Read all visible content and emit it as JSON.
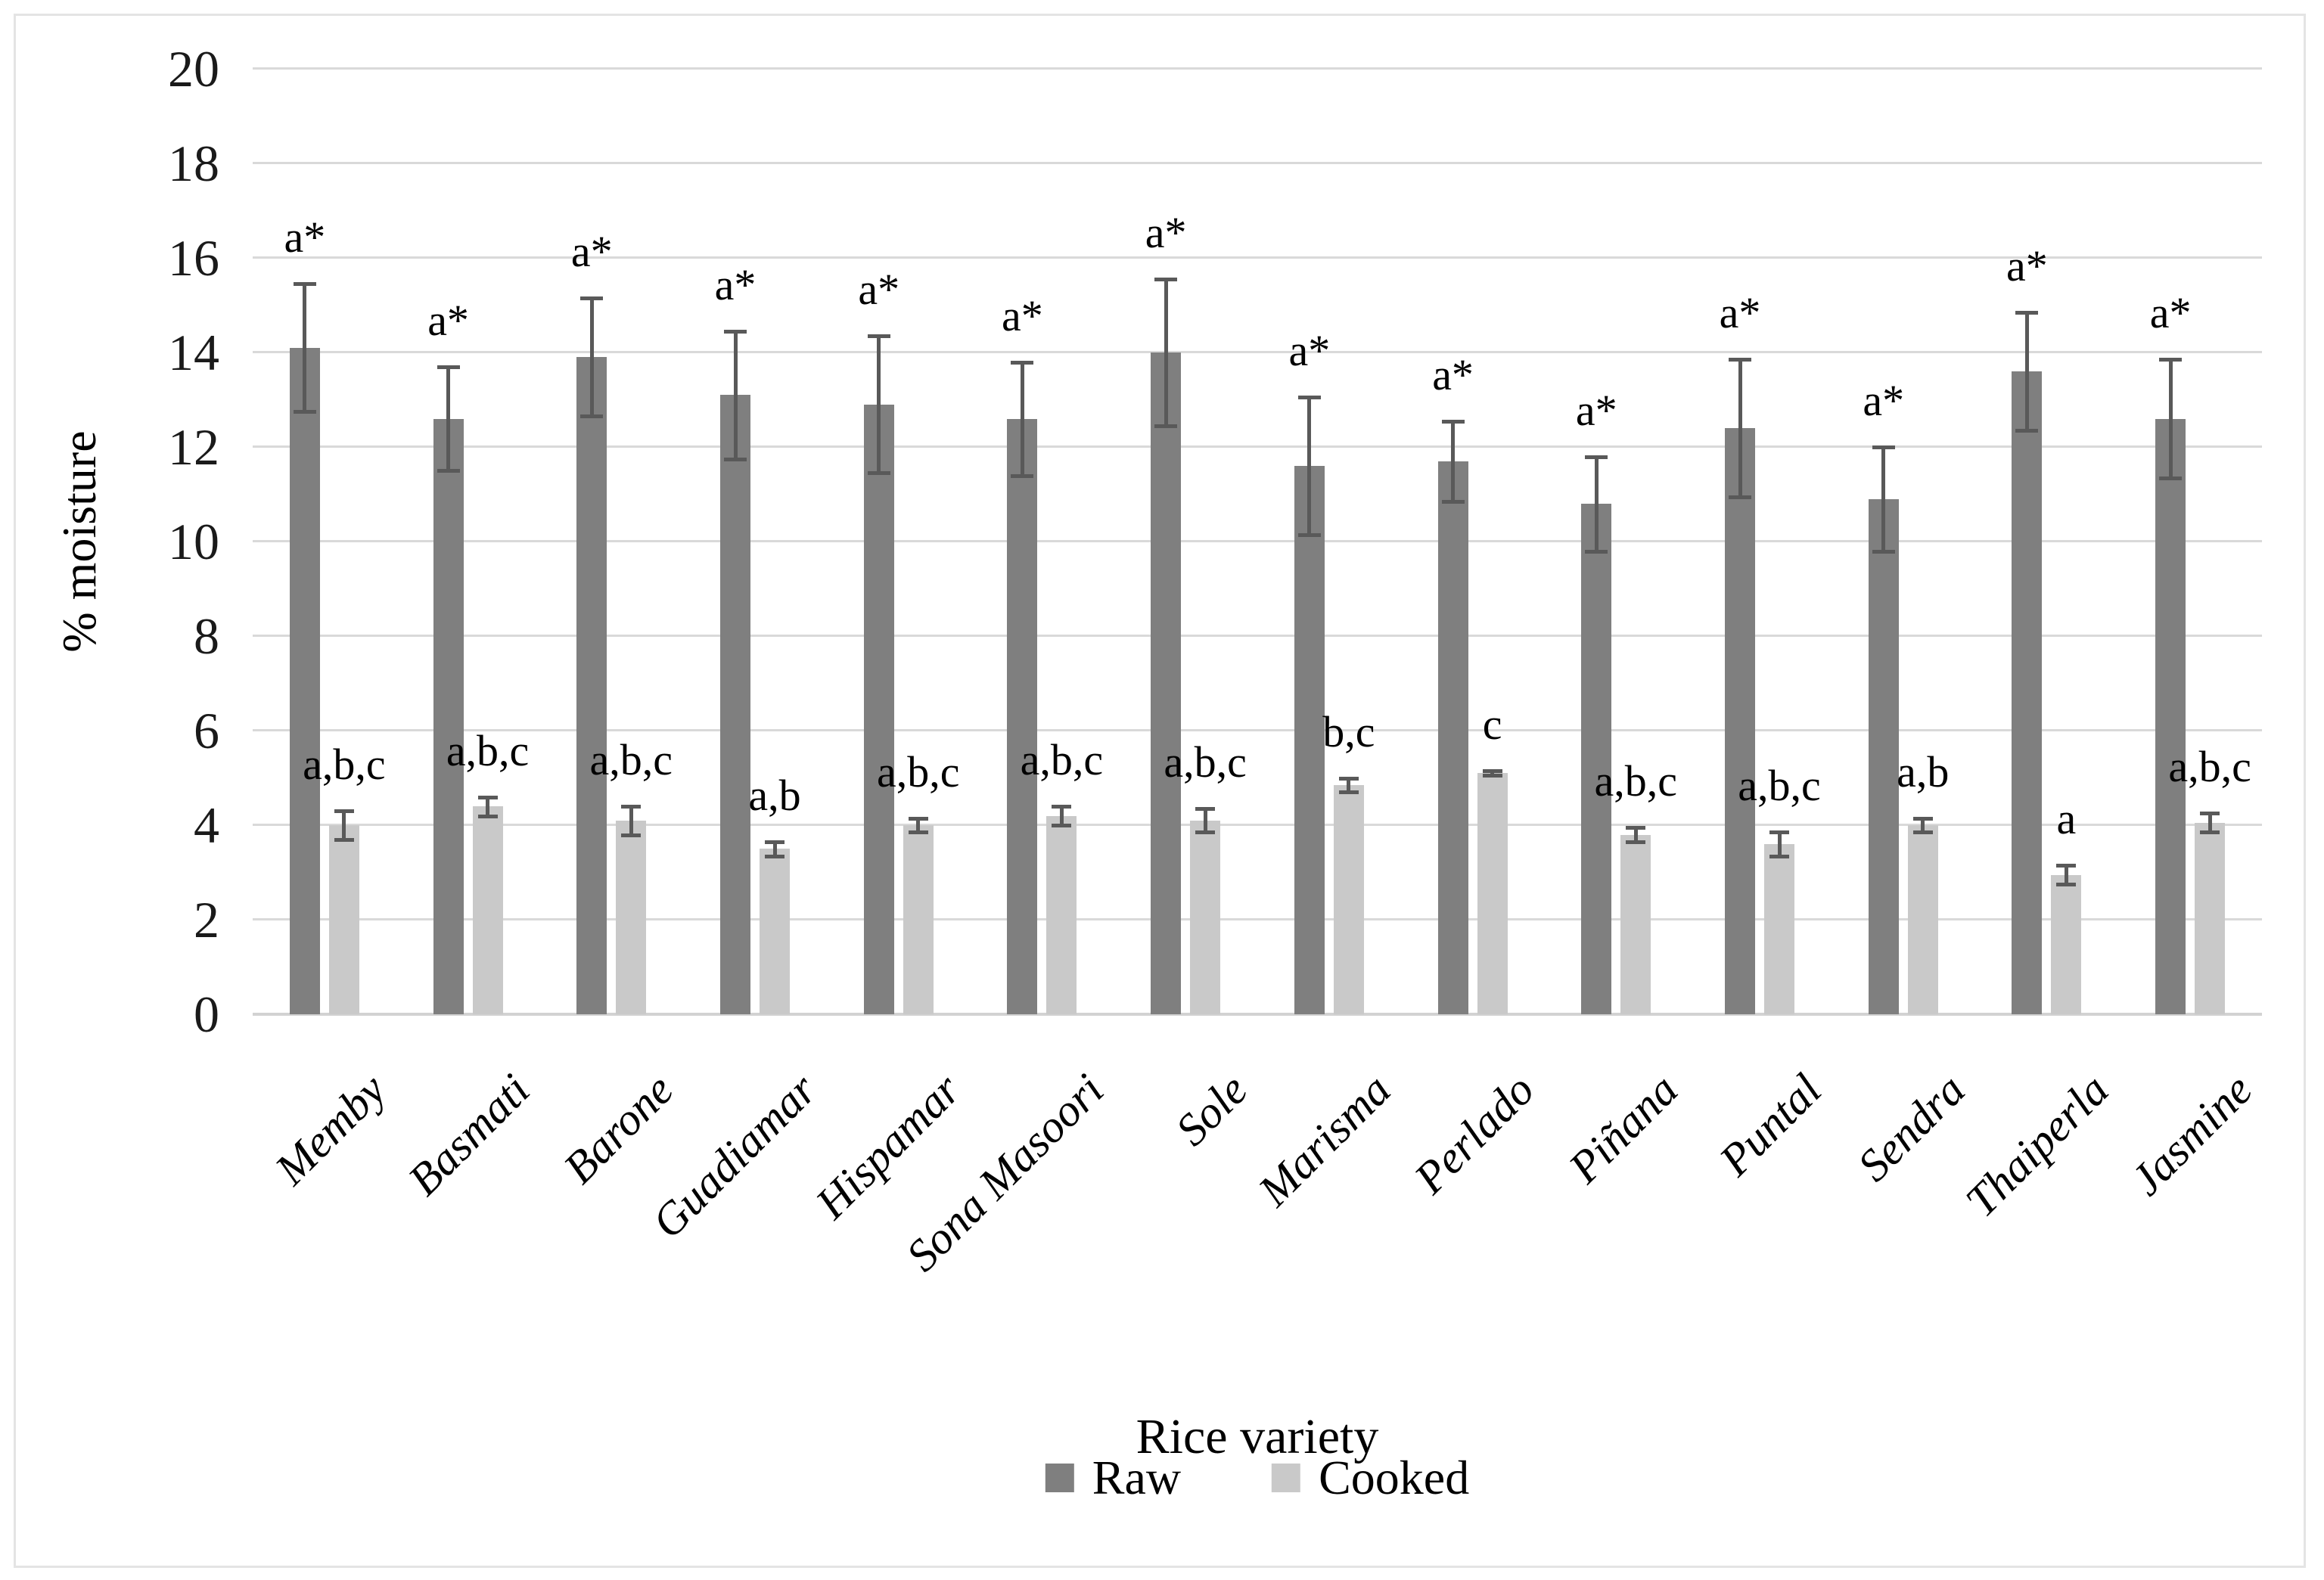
{
  "chart_data": {
    "type": "bar",
    "title": "",
    "xlabel": "Rice variety",
    "ylabel": "% moisture",
    "ylim": [
      0,
      20
    ],
    "ytick_step": 2,
    "grid": true,
    "legend_position": "bottom",
    "grid_color": "#d9d9d9",
    "error_bar_color": "#595959",
    "categories": [
      "Memby",
      "Basmati",
      "Barone",
      "Guadiamar",
      "Hispamar",
      "Sona Masoori",
      "Sole",
      "Marisma",
      "Perlado",
      "Piñana",
      "Puntal",
      "Sendra",
      "Thaiperla",
      "Jasmine"
    ],
    "series": [
      {
        "name": "Raw",
        "color": "#7f7f7f",
        "values": [
          14.1,
          12.6,
          13.9,
          13.1,
          12.9,
          12.6,
          14.0,
          11.6,
          11.7,
          10.8,
          12.4,
          10.9,
          13.6,
          12.6
        ],
        "errors": [
          1.35,
          1.1,
          1.25,
          1.35,
          1.45,
          1.2,
          1.55,
          1.45,
          0.85,
          1.0,
          1.45,
          1.1,
          1.25,
          1.25
        ],
        "labels": [
          "a*",
          "a*",
          "a*",
          "a*",
          "a*",
          "a*",
          "a*",
          "a*",
          "a*",
          "a*",
          "a*",
          "a*",
          "a*",
          "a*"
        ]
      },
      {
        "name": "Cooked",
        "color": "#c9c9c9",
        "values": [
          4.0,
          4.4,
          4.1,
          3.5,
          4.0,
          4.2,
          4.1,
          4.85,
          5.1,
          3.8,
          3.6,
          4.0,
          2.95,
          4.05
        ],
        "errors": [
          0.3,
          0.2,
          0.3,
          0.15,
          0.15,
          0.2,
          0.25,
          0.15,
          0.05,
          0.15,
          0.25,
          0.15,
          0.2,
          0.2
        ],
        "labels": [
          "a,b,c",
          "a,b,c",
          "a,b,c",
          "a,b",
          "a,b,c",
          "a,b,c",
          "a,b,c",
          "b,c",
          "c",
          "a,b,c",
          "a,b,c",
          "a,b",
          "a",
          "a,b,c"
        ]
      }
    ]
  }
}
